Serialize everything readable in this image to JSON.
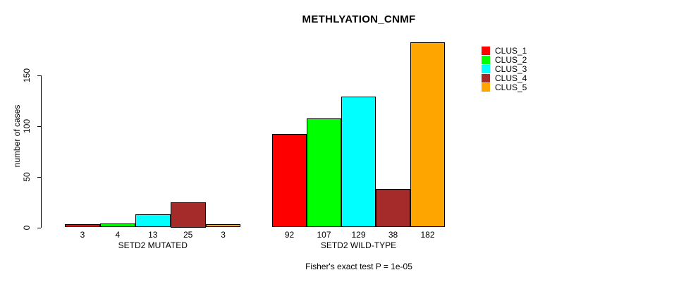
{
  "chart_data": {
    "type": "bar",
    "title": "METHLYATION_CNMF",
    "ylabel": "number of cases",
    "xlabel": "",
    "yticks": [
      0,
      50,
      100,
      150
    ],
    "ylim": [
      0,
      185
    ],
    "grid": false,
    "legend_position": "right",
    "series": [
      "CLUS_1",
      "CLUS_2",
      "CLUS_3",
      "CLUS_4",
      "CLUS_5"
    ],
    "colors": [
      "#FF0000",
      "#00FF00",
      "#00FFFF",
      "#A52A2A",
      "#FFA500"
    ],
    "groups": [
      {
        "label": "SETD2 MUTATED",
        "values": [
          3,
          4,
          13,
          25,
          3
        ]
      },
      {
        "label": "SETD2 WILD-TYPE",
        "values": [
          92,
          107,
          129,
          38,
          182
        ]
      }
    ],
    "bar_value_labels": true,
    "note": "Fisher's exact test P = 1e-05"
  }
}
